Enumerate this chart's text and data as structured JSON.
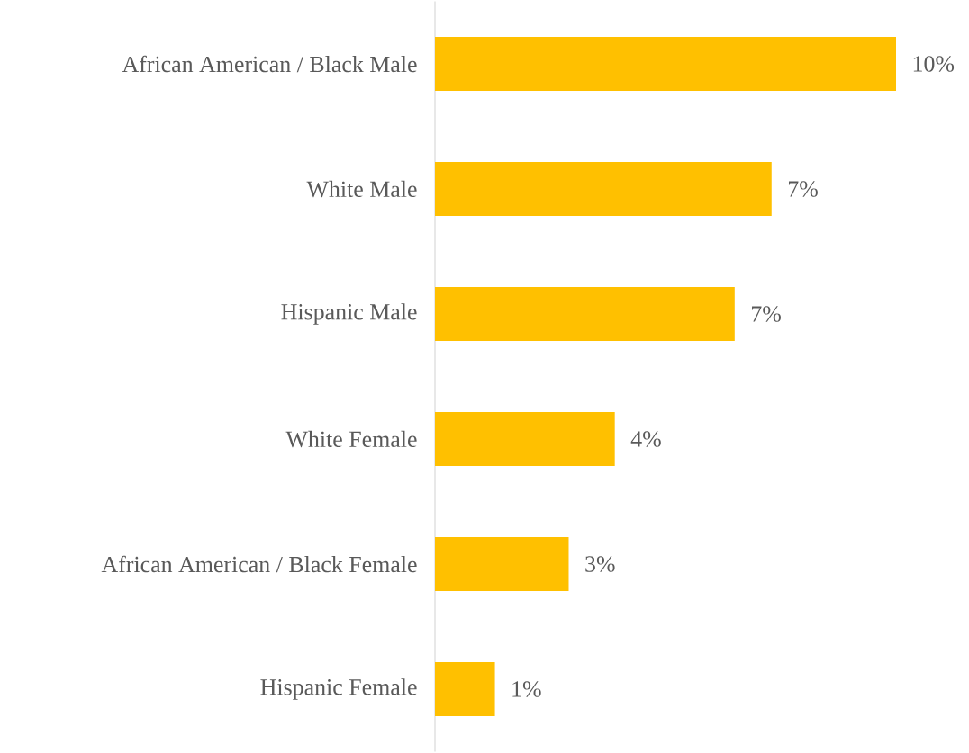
{
  "chart_data": {
    "type": "bar",
    "orientation": "horizontal",
    "categories": [
      "African American / Black Male",
      "White Male",
      "Hispanic Male",
      "White Female",
      "African American / Black Female",
      "Hispanic Female"
    ],
    "values": [
      10,
      7.3,
      6.5,
      3.9,
      2.9,
      1.3
    ],
    "value_labels": [
      "10%",
      "7%",
      "7%",
      "4%",
      "3%",
      "1%"
    ],
    "color": "#ffc000"
  }
}
